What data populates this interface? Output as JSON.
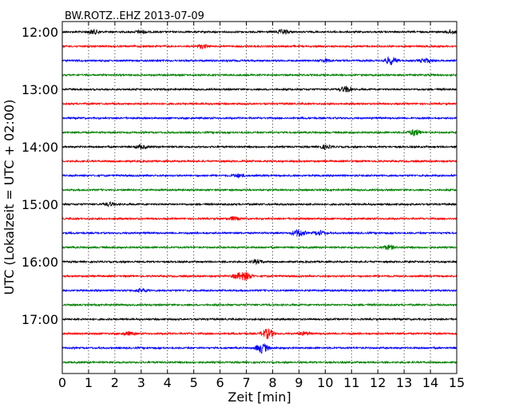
{
  "chart_data": {
    "type": "line",
    "title": "BW.ROTZ..EHZ 2013-07-09",
    "xlabel": "Zeit  [min]",
    "ylabel": "UTC (Lokalzeit = UTC + 02:00)",
    "xlim": [
      0,
      15
    ],
    "x_ticks": [
      "0",
      "1",
      "2",
      "3",
      "4",
      "5",
      "6",
      "7",
      "8",
      "9",
      "10",
      "11",
      "12",
      "13",
      "14",
      "15"
    ],
    "y_ticks": [
      "12:00",
      "13:00",
      "14:00",
      "15:00",
      "16:00",
      "17:00"
    ],
    "grid": "vertical dotted",
    "colors": [
      "#000000",
      "#ff0000",
      "#0000ff",
      "#008000"
    ],
    "series": [
      {
        "start": "12:00",
        "color": "#000000",
        "events": [
          [
            1.2,
            0.4
          ],
          [
            3.0,
            0.3
          ],
          [
            8.4,
            0.4
          ],
          [
            14.8,
            0.3
          ]
        ]
      },
      {
        "start": "12:15",
        "color": "#ff0000",
        "events": [
          [
            5.3,
            0.3
          ]
        ]
      },
      {
        "start": "12:30",
        "color": "#0000ff",
        "events": [
          [
            10.0,
            0.3
          ],
          [
            12.5,
            0.7
          ],
          [
            13.8,
            0.4
          ]
        ]
      },
      {
        "start": "12:45",
        "color": "#008000",
        "events": []
      },
      {
        "start": "13:00",
        "color": "#000000",
        "events": [
          [
            10.8,
            0.5
          ]
        ]
      },
      {
        "start": "13:15",
        "color": "#ff0000",
        "events": []
      },
      {
        "start": "13:30",
        "color": "#0000ff",
        "events": []
      },
      {
        "start": "13:45",
        "color": "#008000",
        "events": [
          [
            13.4,
            0.6
          ]
        ]
      },
      {
        "start": "14:00",
        "color": "#000000",
        "events": [
          [
            3.0,
            0.3
          ],
          [
            10.0,
            0.3
          ]
        ]
      },
      {
        "start": "14:15",
        "color": "#ff0000",
        "events": []
      },
      {
        "start": "14:30",
        "color": "#0000ff",
        "events": [
          [
            6.7,
            0.3
          ]
        ]
      },
      {
        "start": "14:45",
        "color": "#008000",
        "events": []
      },
      {
        "start": "15:00",
        "color": "#000000",
        "events": [
          [
            1.8,
            0.3
          ]
        ]
      },
      {
        "start": "15:15",
        "color": "#ff0000",
        "events": [
          [
            6.5,
            0.3
          ]
        ]
      },
      {
        "start": "15:30",
        "color": "#0000ff",
        "events": [
          [
            9.0,
            0.7
          ],
          [
            9.8,
            0.4
          ]
        ]
      },
      {
        "start": "15:45",
        "color": "#008000",
        "events": [
          [
            12.4,
            0.4
          ]
        ]
      },
      {
        "start": "16:00",
        "color": "#000000",
        "events": [
          [
            7.4,
            0.3
          ]
        ]
      },
      {
        "start": "16:15",
        "color": "#ff0000",
        "events": [
          [
            6.7,
            0.5
          ],
          [
            7.0,
            0.6
          ]
        ]
      },
      {
        "start": "16:30",
        "color": "#0000ff",
        "events": [
          [
            3.0,
            0.3
          ]
        ]
      },
      {
        "start": "16:45",
        "color": "#008000",
        "events": []
      },
      {
        "start": "17:00",
        "color": "#000000",
        "events": []
      },
      {
        "start": "17:15",
        "color": "#ff0000",
        "events": [
          [
            2.5,
            0.3
          ],
          [
            7.8,
            0.9
          ],
          [
            9.2,
            0.3
          ]
        ]
      },
      {
        "start": "17:30",
        "color": "#0000ff",
        "events": [
          [
            7.6,
            0.9
          ]
        ]
      },
      {
        "start": "17:45",
        "color": "#008000",
        "events": []
      }
    ]
  }
}
